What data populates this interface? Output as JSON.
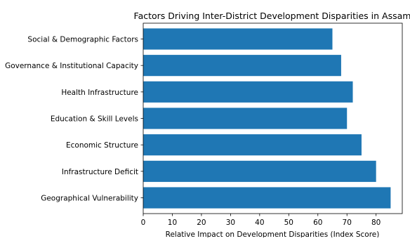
{
  "chart_data": {
    "type": "bar",
    "orientation": "horizontal",
    "title": "Factors Driving Inter-District Development Disparities in Assam",
    "xlabel": "Relative Impact on Development Disparities (Index Score)",
    "ylabel": "",
    "categories": [
      "Geographical Vulnerability",
      "Infrastructure Deficit",
      "Economic Structure",
      "Education & Skill Levels",
      "Health Infrastructure",
      "Governance & Institutional Capacity",
      "Social & Demographic Factors"
    ],
    "values": [
      85,
      80,
      75,
      70,
      72,
      68,
      65
    ],
    "xlim": [
      0,
      89
    ],
    "xticks": [
      0,
      10,
      20,
      30,
      40,
      50,
      60,
      70,
      80
    ],
    "bar_color": "#1f77b4",
    "grid": false,
    "legend": "none"
  }
}
